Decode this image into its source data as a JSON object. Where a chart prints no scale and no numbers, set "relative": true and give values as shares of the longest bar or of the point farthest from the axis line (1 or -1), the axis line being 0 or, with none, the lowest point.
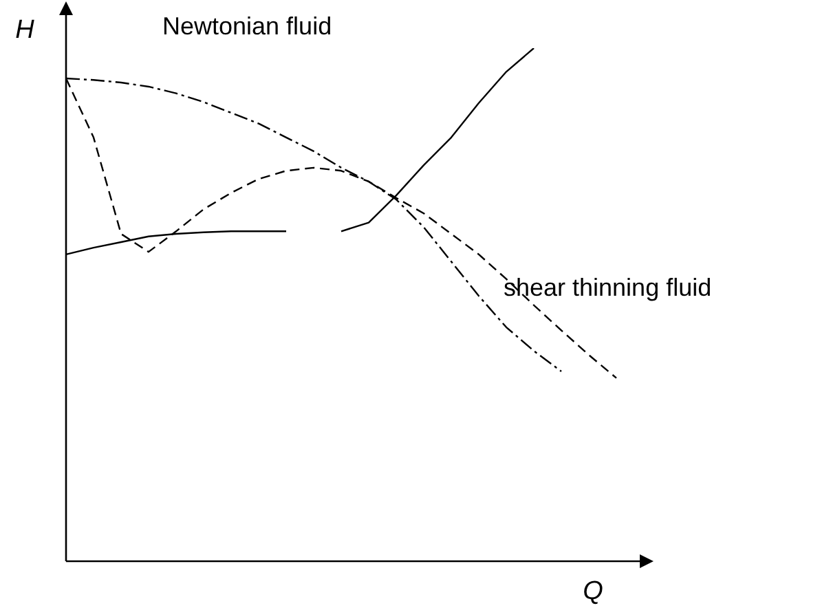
{
  "chart_data": {
    "type": "line",
    "relative": true,
    "xlabel": "Q",
    "ylabel": "H",
    "legend": false,
    "marker": "none",
    "categories": [
      null,
      null,
      null,
      null,
      null,
      null,
      null,
      null,
      null,
      null,
      null,
      null,
      null,
      null,
      null,
      null,
      null,
      null,
      null,
      null,
      null
    ],
    "series": [
      {
        "name": "Newtonian fluid",
        "color": "#000000",
        "line_style": "dashdot",
        "values": [
          0.941,
          0.938,
          0.933,
          0.925,
          0.912,
          0.895,
          0.874,
          0.853,
          0.826,
          0.799,
          0.767,
          0.74,
          0.705,
          0.651,
          0.584,
          0.517,
          0.456,
          0.41,
          0.37,
          null,
          null
        ]
      },
      {
        "name": "shear thinning fluid",
        "color": "#000000",
        "line_style": "dashed",
        "values": [
          0.941,
          0.826,
          0.638,
          0.603,
          0.643,
          0.686,
          0.718,
          0.745,
          0.761,
          0.767,
          0.761,
          0.74,
          0.708,
          0.678,
          0.638,
          0.598,
          0.55,
          0.499,
          0.45,
          0.402,
          0.357
        ]
      },
      {
        "color": "#000000",
        "line_style": "solid",
        "values": [
          0.598,
          0.611,
          0.622,
          0.633,
          0.638,
          0.641,
          0.643,
          0.643,
          0.643,
          null,
          0.643,
          0.66,
          0.713,
          0.772,
          0.826,
          0.893,
          0.954,
          1.0,
          null,
          null,
          null
        ]
      }
    ]
  }
}
